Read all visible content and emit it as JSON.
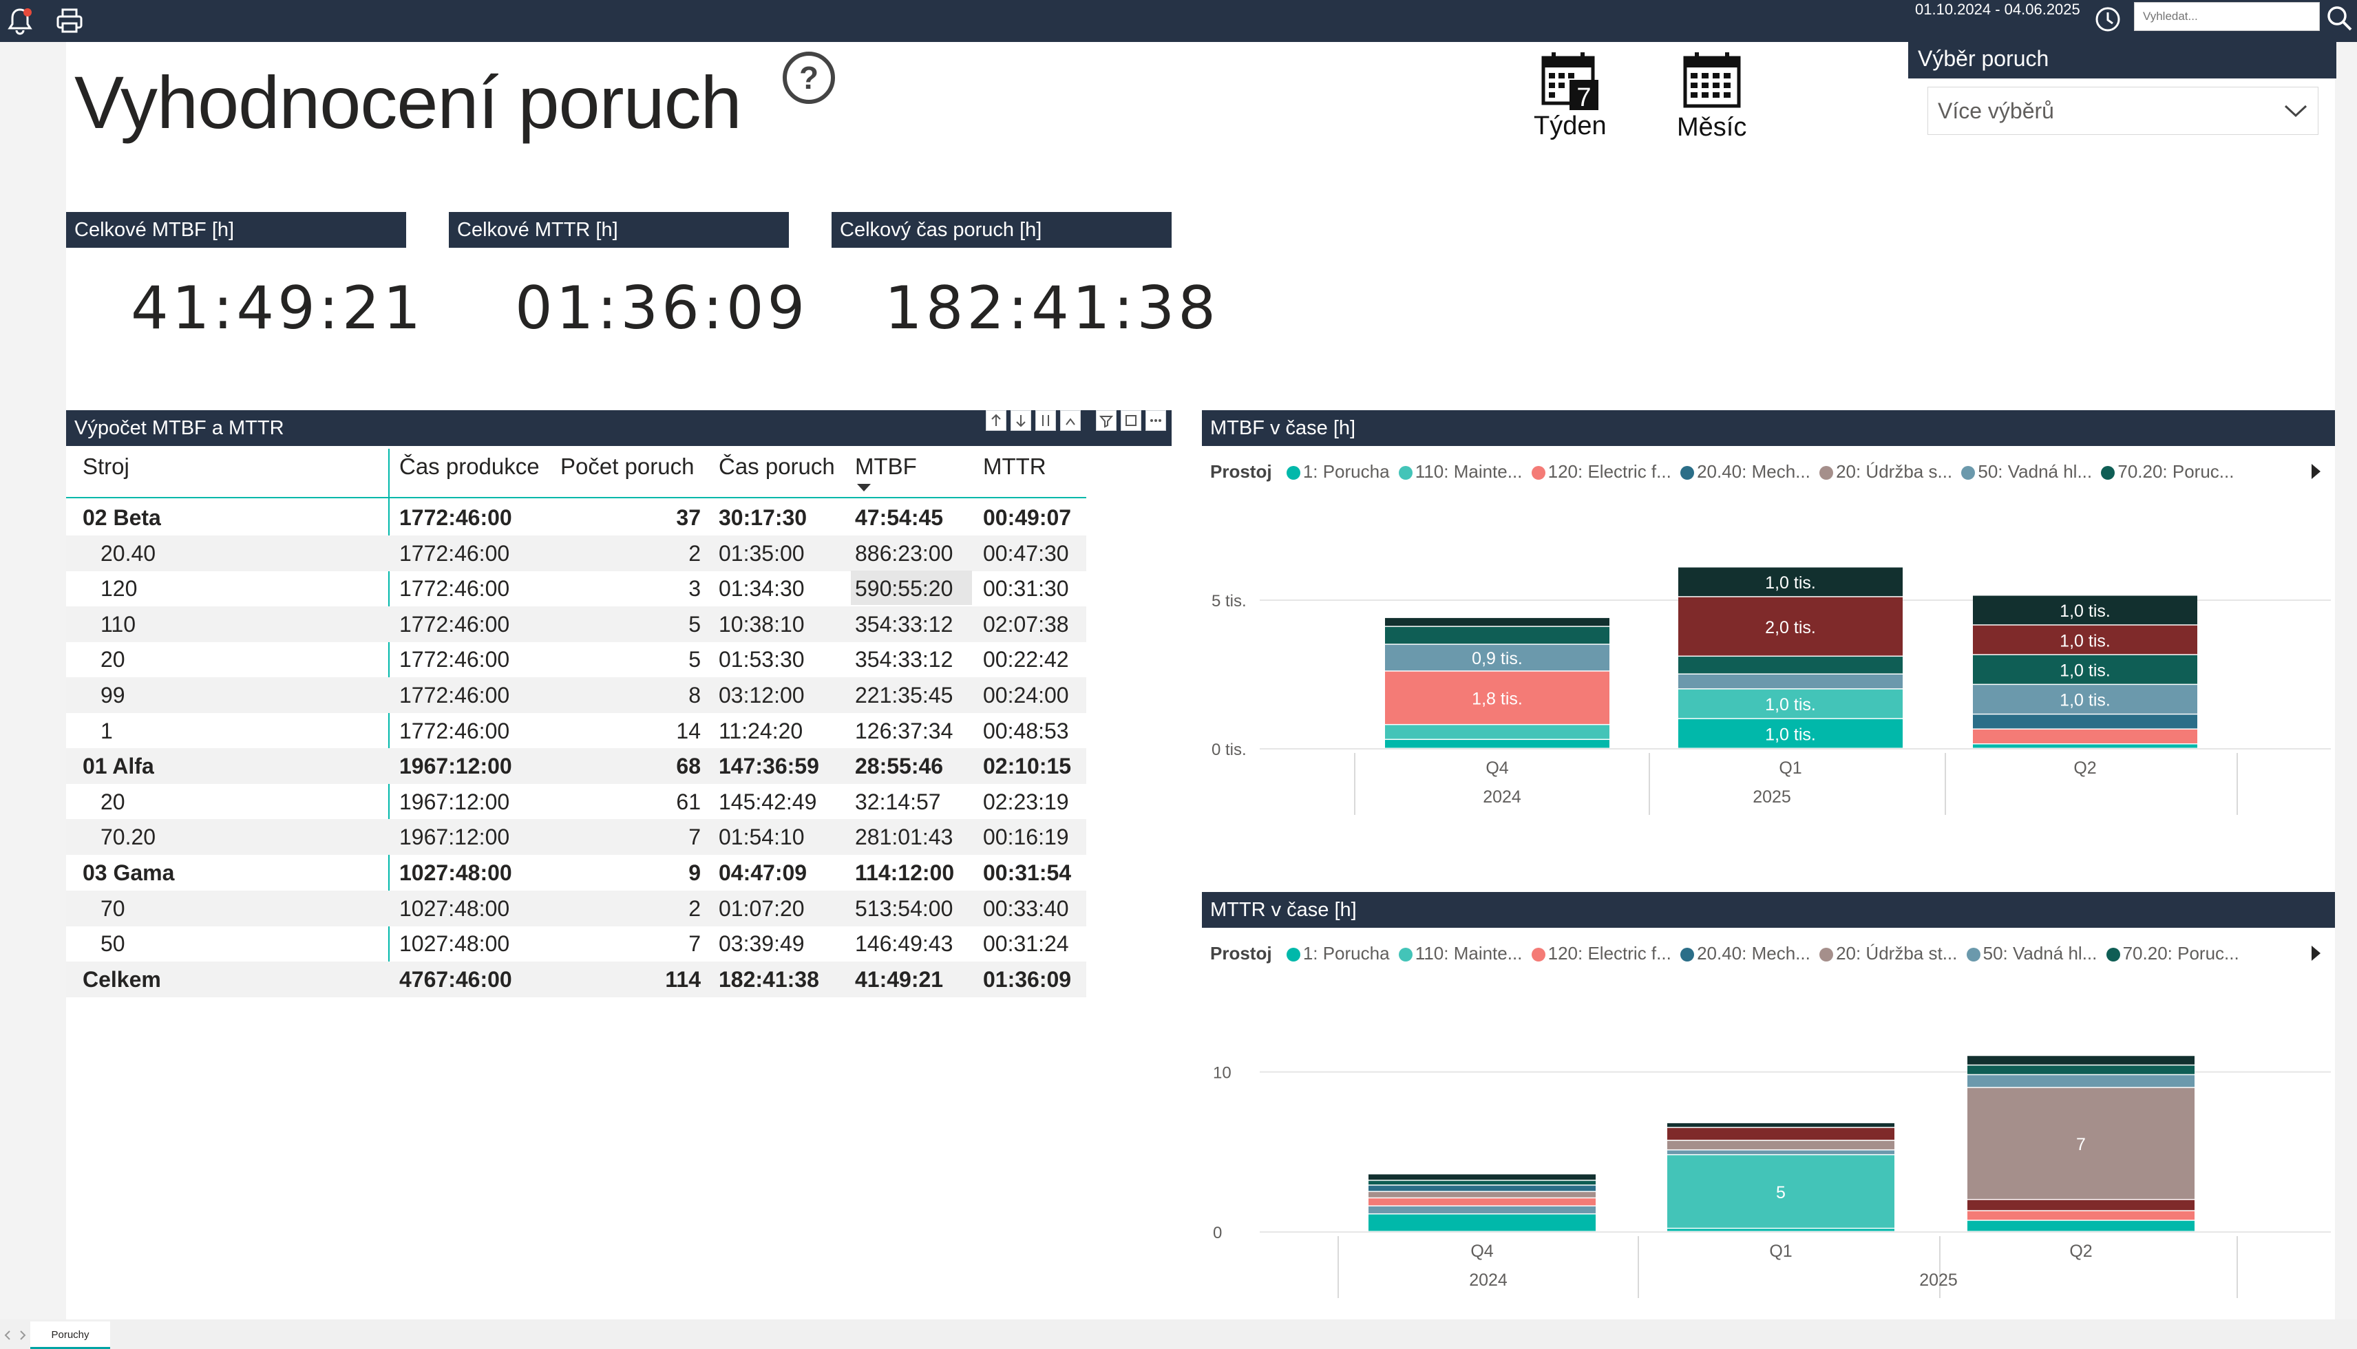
{
  "topbar": {
    "date_range": "01.10.2024 - 04.06.2025",
    "search_placeholder": "Vyhledat..."
  },
  "page": {
    "title": "Vyhodnocení poruch",
    "week_label": "Týden",
    "week_number": "7",
    "month_label": "Měsíc",
    "tab_label": "Poruchy"
  },
  "slicer": {
    "title": "Výběr poruch",
    "value": "Více výběrů"
  },
  "kpis": [
    {
      "label": "Celkové MTBF [h]",
      "value": "41:49:21"
    },
    {
      "label": "Celkové MTTR [h]",
      "value": "01:36:09"
    },
    {
      "label": "Celkový čas poruch [h]",
      "value": "182:41:38"
    }
  ],
  "matrix": {
    "title": "Výpočet MTBF a MTTR",
    "columns": [
      "Stroj",
      "Čas produkce",
      "Počet poruch",
      "Čas poruch",
      "MTBF",
      "MTTR"
    ],
    "rows": [
      {
        "level": 0,
        "name": "02 Beta",
        "prod": "1772:46:00",
        "count": "37",
        "time": "30:17:30",
        "mtbf": "47:54:45",
        "mttr": "00:49:07"
      },
      {
        "level": 1,
        "name": "20.40",
        "prod": "1772:46:00",
        "count": "2",
        "time": "01:35:00",
        "mtbf": "886:23:00",
        "mttr": "00:47:30"
      },
      {
        "level": 1,
        "name": "120",
        "prod": "1772:46:00",
        "count": "3",
        "time": "01:34:30",
        "mtbf": "590:55:20",
        "mttr": "00:31:30"
      },
      {
        "level": 1,
        "name": "110",
        "prod": "1772:46:00",
        "count": "5",
        "time": "10:38:10",
        "mtbf": "354:33:12",
        "mttr": "02:07:38"
      },
      {
        "level": 1,
        "name": "20",
        "prod": "1772:46:00",
        "count": "5",
        "time": "01:53:30",
        "mtbf": "354:33:12",
        "mttr": "00:22:42"
      },
      {
        "level": 1,
        "name": "99",
        "prod": "1772:46:00",
        "count": "8",
        "time": "03:12:00",
        "mtbf": "221:35:45",
        "mttr": "00:24:00"
      },
      {
        "level": 1,
        "name": "1",
        "prod": "1772:46:00",
        "count": "14",
        "time": "11:24:20",
        "mtbf": "126:37:34",
        "mttr": "00:48:53"
      },
      {
        "level": 0,
        "name": "01 Alfa",
        "prod": "1967:12:00",
        "count": "68",
        "time": "147:36:59",
        "mtbf": "28:55:46",
        "mttr": "02:10:15"
      },
      {
        "level": 1,
        "name": "20",
        "prod": "1967:12:00",
        "count": "61",
        "time": "145:42:49",
        "mtbf": "32:14:57",
        "mttr": "02:23:19"
      },
      {
        "level": 1,
        "name": "70.20",
        "prod": "1967:12:00",
        "count": "7",
        "time": "01:54:10",
        "mtbf": "281:01:43",
        "mttr": "00:16:19"
      },
      {
        "level": 0,
        "name": "03 Gama",
        "prod": "1027:48:00",
        "count": "9",
        "time": "04:47:09",
        "mtbf": "114:12:00",
        "mttr": "00:31:54"
      },
      {
        "level": 1,
        "name": "70",
        "prod": "1027:48:00",
        "count": "2",
        "time": "01:07:20",
        "mtbf": "513:54:00",
        "mttr": "00:33:40"
      },
      {
        "level": 1,
        "name": "50",
        "prod": "1027:48:00",
        "count": "7",
        "time": "03:39:49",
        "mtbf": "146:49:43",
        "mttr": "00:31:24"
      },
      {
        "level": 0,
        "name": "Celkem",
        "prod": "4767:46:00",
        "count": "114",
        "time": "182:41:38",
        "mtbf": "41:49:21",
        "mttr": "01:36:09"
      }
    ]
  },
  "colors": {
    "header": "#263346",
    "s1": "#01b8aa",
    "s2": "#43c4b8",
    "s3": "#f47b76",
    "s4": "#2b6e88",
    "s5": "#a58f8b",
    "s6": "#6b99ac",
    "s7": "#0f5e55",
    "s8": "#7f2a2a",
    "s9": "#12302f"
  },
  "chart_data": [
    {
      "type": "bar",
      "title": "MTBF v čase [h]",
      "legend_title": "Prostoj",
      "legend": [
        "1: Porucha",
        "110: Mainte...",
        "120: Electric f...",
        "20.40: Mech...",
        "20: Údržba s...",
        "50: Vadná hl...",
        "70.20: Poruc..."
      ],
      "categories": [
        "Q4",
        "Q1",
        "Q2"
      ],
      "year_labels": [
        "2024",
        "2025"
      ],
      "y_ticks": [
        {
          "value": 0,
          "label": "0 tis."
        },
        {
          "value": 5000,
          "label": "5 tis."
        }
      ],
      "ylim": [
        0,
        6250
      ],
      "stacks": [
        [
          {
            "v": 300,
            "c": "s1",
            "label": ""
          },
          {
            "v": 500,
            "c": "s2",
            "label": ""
          },
          {
            "v": 1800,
            "c": "s3",
            "label": "1,8 tis."
          },
          {
            "v": 900,
            "c": "s6",
            "label": "0,9 tis."
          },
          {
            "v": 600,
            "c": "s7",
            "label": ""
          },
          {
            "v": 300,
            "c": "s9",
            "label": ""
          }
        ],
        [
          {
            "v": 1000,
            "c": "s1",
            "label": "1,0 tis."
          },
          {
            "v": 1000,
            "c": "s2",
            "label": "1,0 tis."
          },
          {
            "v": 500,
            "c": "s6",
            "label": ""
          },
          {
            "v": 600,
            "c": "s7",
            "label": ""
          },
          {
            "v": 2000,
            "c": "s8",
            "label": "2,0 tis."
          },
          {
            "v": 1000,
            "c": "s9",
            "label": "1,0 tis."
          }
        ],
        [
          {
            "v": 150,
            "c": "s1",
            "label": ""
          },
          {
            "v": 500,
            "c": "s3",
            "label": ""
          },
          {
            "v": 500,
            "c": "s4",
            "label": ""
          },
          {
            "v": 1000,
            "c": "s6",
            "label": "1,0 tis."
          },
          {
            "v": 1000,
            "c": "s7",
            "label": "1,0 tis."
          },
          {
            "v": 1000,
            "c": "s8",
            "label": "1,0 tis."
          },
          {
            "v": 1000,
            "c": "s9",
            "label": "1,0 tis."
          }
        ]
      ]
    },
    {
      "type": "bar",
      "title": "MTTR v čase [h]",
      "legend_title": "Prostoj",
      "legend": [
        "1: Porucha",
        "110: Mainte...",
        "120: Electric f...",
        "20.40: Mech...",
        "20: Údržba st...",
        "50: Vadná hl...",
        "70.20: Poruc..."
      ],
      "categories": [
        "Q4",
        "Q1",
        "Q2"
      ],
      "year_labels": [
        "2024",
        "2025"
      ],
      "y_ticks": [
        {
          "value": 0,
          "label": "0"
        },
        {
          "value": 10,
          "label": "10"
        }
      ],
      "ylim": [
        0,
        12
      ],
      "stacks": [
        [
          {
            "v": 1.1,
            "c": "s1",
            "label": ""
          },
          {
            "v": 0.5,
            "c": "s6",
            "label": ""
          },
          {
            "v": 0.5,
            "c": "s3",
            "label": ""
          },
          {
            "v": 0.4,
            "c": "s5",
            "label": ""
          },
          {
            "v": 0.4,
            "c": "s4",
            "label": ""
          },
          {
            "v": 0.3,
            "c": "s7",
            "label": ""
          },
          {
            "v": 0.4,
            "c": "s9",
            "label": ""
          }
        ],
        [
          {
            "v": 0.2,
            "c": "s1",
            "label": ""
          },
          {
            "v": 4.6,
            "c": "s2",
            "label": "5"
          },
          {
            "v": 0.3,
            "c": "s6",
            "label": ""
          },
          {
            "v": 0.6,
            "c": "s5",
            "label": ""
          },
          {
            "v": 0.8,
            "c": "s8",
            "label": ""
          },
          {
            "v": 0.3,
            "c": "s9",
            "label": ""
          }
        ],
        [
          {
            "v": 0.7,
            "c": "s1",
            "label": ""
          },
          {
            "v": 0.6,
            "c": "s3",
            "label": ""
          },
          {
            "v": 0.7,
            "c": "s8",
            "label": ""
          },
          {
            "v": 7.0,
            "c": "s5",
            "label": "7"
          },
          {
            "v": 0.8,
            "c": "s6",
            "label": ""
          },
          {
            "v": 0.6,
            "c": "s7",
            "label": ""
          },
          {
            "v": 0.6,
            "c": "s9",
            "label": ""
          }
        ]
      ]
    }
  ]
}
